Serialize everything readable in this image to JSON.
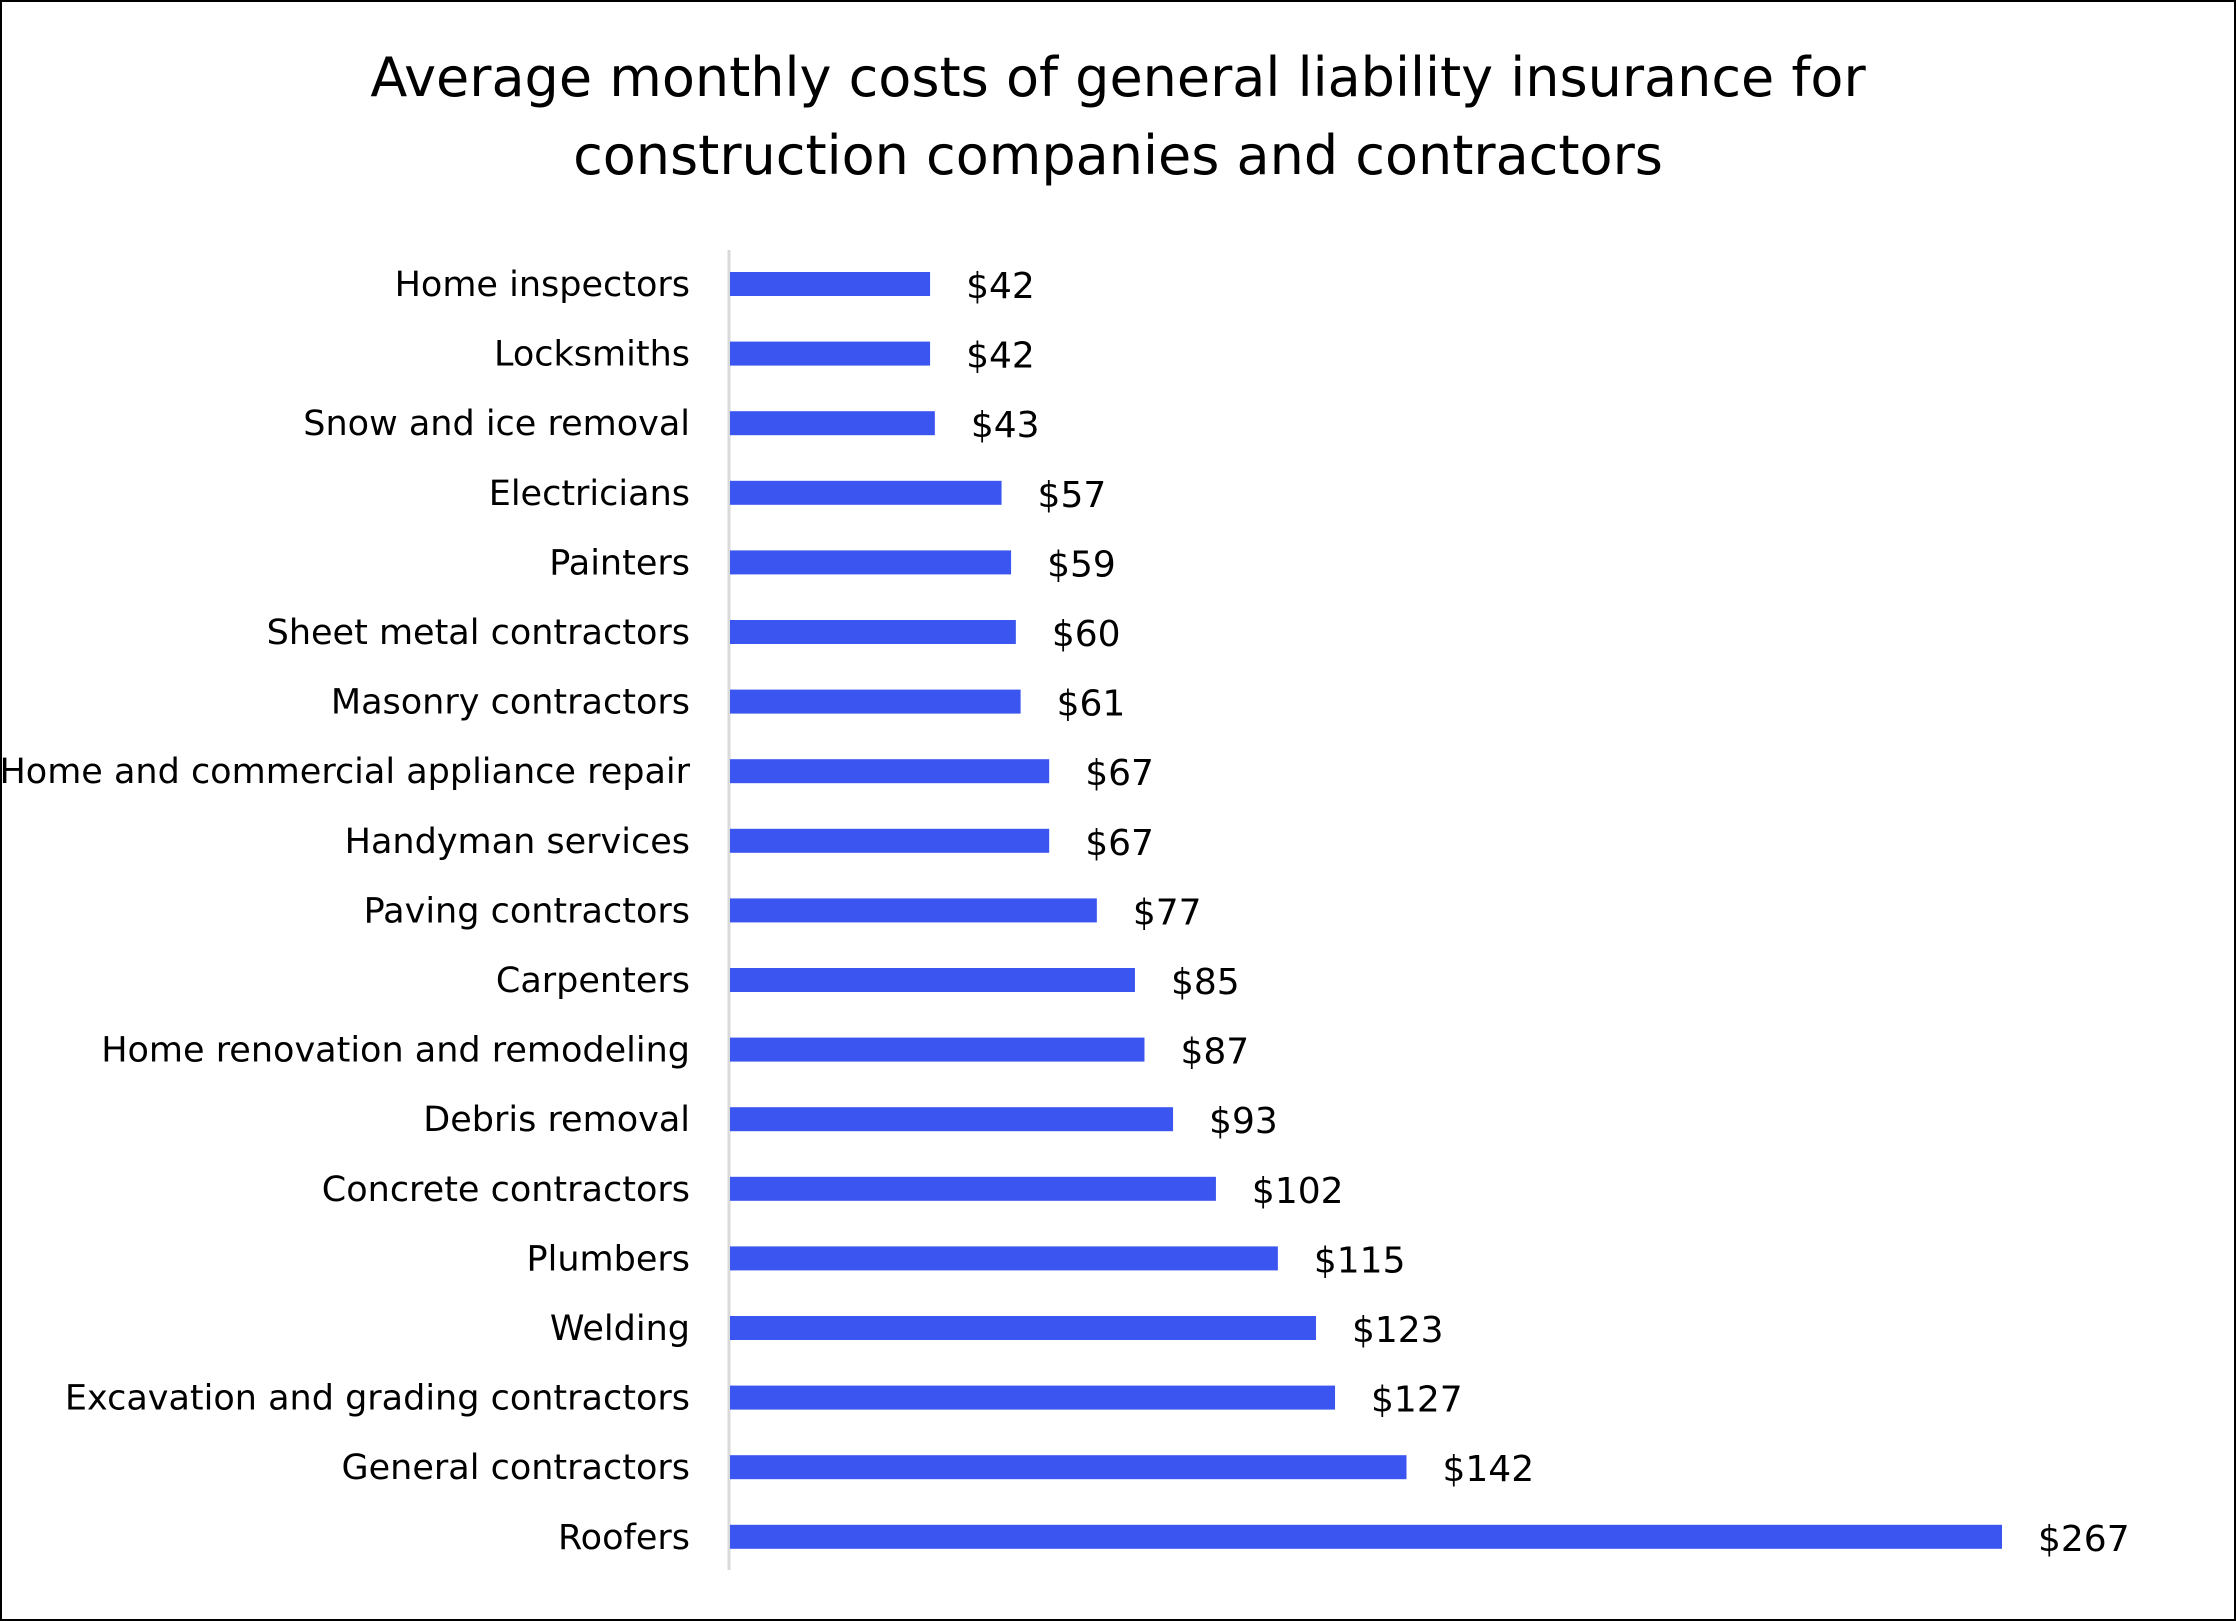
{
  "chart_data": {
    "type": "bar",
    "orientation": "horizontal",
    "title": "Average monthly costs of general liability insurance for construction companies and contractors",
    "title_lines": [
      "Average monthly costs of general liability insurance for",
      "construction companies and contractors"
    ],
    "xlabel": "",
    "ylabel": "",
    "categories": [
      "Home inspectors",
      "Locksmiths",
      "Snow and ice removal",
      "Electricians",
      "Painters",
      "Sheet metal contractors",
      "Masonry contractors",
      "Home and commercial appliance repair",
      "Handyman services",
      "Paving contractors",
      "Carpenters",
      "Home renovation and remodeling",
      "Debris removal",
      "Concrete contractors",
      "Plumbers",
      "Welding",
      "Excavation and grading contractors",
      "General contractors",
      "Roofers"
    ],
    "values": [
      42,
      42,
      43,
      57,
      59,
      60,
      61,
      67,
      67,
      77,
      85,
      87,
      93,
      102,
      115,
      123,
      127,
      142,
      267
    ],
    "data_labels": [
      "$42",
      "$42",
      "$43",
      "$57",
      "$59",
      "$60",
      "$61",
      "$67",
      "$67",
      "$77",
      "$85",
      "$87",
      "$93",
      "$102",
      "$115",
      "$123",
      "$127",
      "$142",
      "$267"
    ],
    "xlim": [
      0,
      270
    ],
    "grid": false,
    "legend": "none",
    "colors": {
      "bar": "#3b55f0",
      "axis": "#d9d9d9",
      "border": "#000000"
    }
  }
}
